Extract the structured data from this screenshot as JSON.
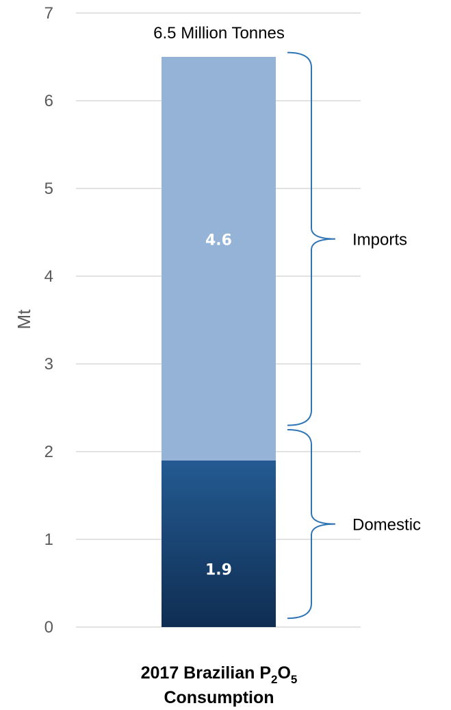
{
  "chart_data": {
    "type": "bar",
    "stacked": true,
    "categories": [
      "2017 Brazilian P2O5 Consumption"
    ],
    "series": [
      {
        "name": "Domestic",
        "values": [
          1.9
        ],
        "label": "1.9",
        "color": "#1f4e79"
      },
      {
        "name": "Imports",
        "values": [
          4.6
        ],
        "label": "4.6",
        "color": "#95b3d7"
      }
    ],
    "total_label": "6.5 Million Tonnes",
    "ylabel": "Mt",
    "ylim": [
      0,
      7
    ],
    "yticks": [
      0,
      1,
      2,
      3,
      4,
      5,
      6,
      7
    ],
    "grid": true,
    "xtitle": {
      "line1_main": "2017 Brazilian P",
      "sub1": "2",
      "mid": "O",
      "sub2": "5",
      "line2": "Consumption"
    },
    "braces": [
      {
        "label": "Imports",
        "from": 2.3,
        "to": 6.55
      },
      {
        "label": "Domestic",
        "from": 0.1,
        "to": 2.25
      }
    ]
  }
}
